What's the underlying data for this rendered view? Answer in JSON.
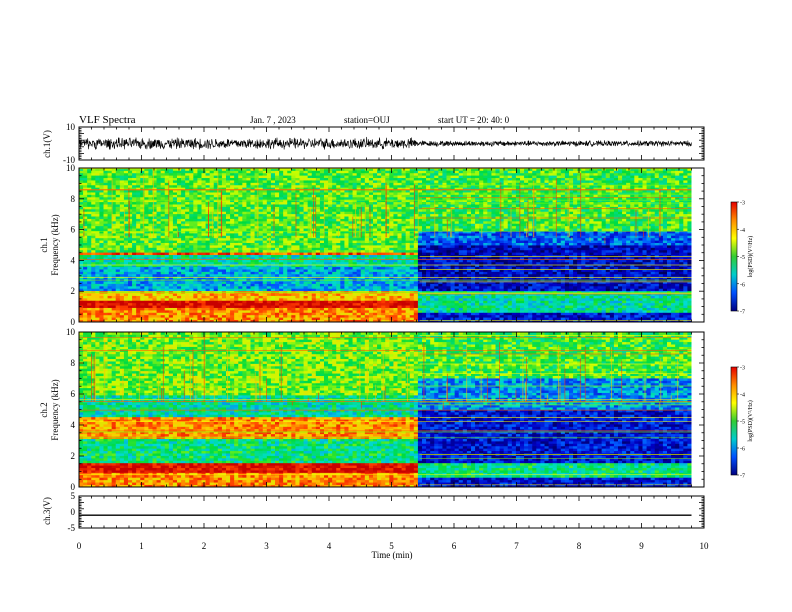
{
  "header": {
    "title": "VLF Spectra",
    "date": "Jan. 7 , 2023",
    "station": "station=OUJ",
    "start_time": "start  UT =   20: 40: 0"
  },
  "panels": {
    "ch1_wave_label": "ch.1(V)",
    "ch1_spec_label": "ch.1",
    "ch1_freq_label": "Frequency  (kHz)",
    "ch2_spec_label": "ch.2",
    "ch2_freq_label": "Frequency  (kHz)",
    "ch3_label": "ch.3(V)",
    "x_label": "Time  (min)"
  },
  "colorbar": {
    "label": "log(PSD)(V²/Hz)",
    "ticks": [
      "-3",
      "-4",
      "-5",
      "-6",
      "-7"
    ],
    "colors": [
      "#e60000",
      "#ff8c00",
      "#ffff00",
      "#33cc33",
      "#00cccc",
      "#0050ff",
      "#000080"
    ]
  },
  "chart_data": [
    {
      "type": "line",
      "name": "ch1-waveform",
      "ylabel": "ch.1(V)",
      "ylim": [
        -10,
        10
      ],
      "yticks": [
        "10",
        "-10"
      ],
      "xlim": [
        0,
        10
      ],
      "xticks": [
        "0",
        "1",
        "2",
        "3",
        "4",
        "5",
        "6",
        "7",
        "8",
        "9",
        "10"
      ],
      "xlabel": "Time  (min)",
      "segments": [
        {
          "x": [
            0,
            5.4
          ],
          "amplitude": 4
        },
        {
          "x": [
            5.4,
            9.8
          ],
          "amplitude": 2
        }
      ]
    },
    {
      "type": "heatmap",
      "name": "ch1-spectrogram",
      "ylabel": "Frequency  (kHz)",
      "ylim": [
        0,
        10
      ],
      "yticks": [
        "0",
        "2",
        "4",
        "6",
        "8",
        "10"
      ],
      "xlim": [
        0,
        10
      ],
      "data_end": 9.8,
      "transition_time": 5.45,
      "zrange": [
        -7,
        -3
      ],
      "bands_before": [
        {
          "f": [
            0,
            1.0
          ],
          "z": -3.8
        },
        {
          "f": [
            1.0,
            1.4
          ],
          "z": -3.1
        },
        {
          "f": [
            1.4,
            2.0
          ],
          "z": -4.0
        },
        {
          "f": [
            2.0,
            3.6
          ],
          "z": -5.7
        },
        {
          "f": [
            3.6,
            4.3
          ],
          "z": -5.3
        },
        {
          "f": [
            4.3,
            4.6
          ],
          "z": -3.5
        },
        {
          "f": [
            4.6,
            10
          ],
          "z": -4.8
        }
      ],
      "bands_after": [
        {
          "f": [
            0,
            0.6
          ],
          "z": -6.4
        },
        {
          "f": [
            0.6,
            2.0
          ],
          "z": -5.3
        },
        {
          "f": [
            2.0,
            5.0
          ],
          "z": -6.5
        },
        {
          "f": [
            5.0,
            6.0
          ],
          "z": -6.0
        },
        {
          "f": [
            6.0,
            10
          ],
          "z": -4.9
        }
      ]
    },
    {
      "type": "heatmap",
      "name": "ch2-spectrogram",
      "ylabel": "Frequency  (kHz)",
      "ylim": [
        0,
        10
      ],
      "yticks": [
        "0",
        "2",
        "4",
        "6",
        "8",
        "10"
      ],
      "xlim": [
        0,
        10
      ],
      "data_end": 9.8,
      "transition_time": 5.45,
      "zrange": [
        -7,
        -3
      ],
      "bands_before": [
        {
          "f": [
            0,
            1.0
          ],
          "z": -3.8
        },
        {
          "f": [
            1.0,
            1.5
          ],
          "z": -3.1
        },
        {
          "f": [
            1.5,
            3.2
          ],
          "z": -5.2
        },
        {
          "f": [
            3.2,
            4.6
          ],
          "z": -3.8
        },
        {
          "f": [
            4.6,
            6.0
          ],
          "z": -5.3
        },
        {
          "f": [
            6.0,
            10
          ],
          "z": -4.7
        }
      ],
      "bands_after": [
        {
          "f": [
            0,
            0.6
          ],
          "z": -6.4
        },
        {
          "f": [
            0.6,
            1.5
          ],
          "z": -5.2
        },
        {
          "f": [
            1.5,
            5.0
          ],
          "z": -6.4
        },
        {
          "f": [
            5.0,
            7.0
          ],
          "z": -5.8
        },
        {
          "f": [
            7.0,
            10
          ],
          "z": -4.9
        }
      ]
    },
    {
      "type": "line",
      "name": "ch3-waveform",
      "ylabel": "ch.3(V)",
      "ylim": [
        -5,
        5
      ],
      "yticks": [
        "5",
        "0",
        "-5"
      ],
      "xlim": [
        0,
        10
      ],
      "x": [
        0,
        9.8
      ],
      "y": [
        -1,
        -1
      ]
    }
  ]
}
